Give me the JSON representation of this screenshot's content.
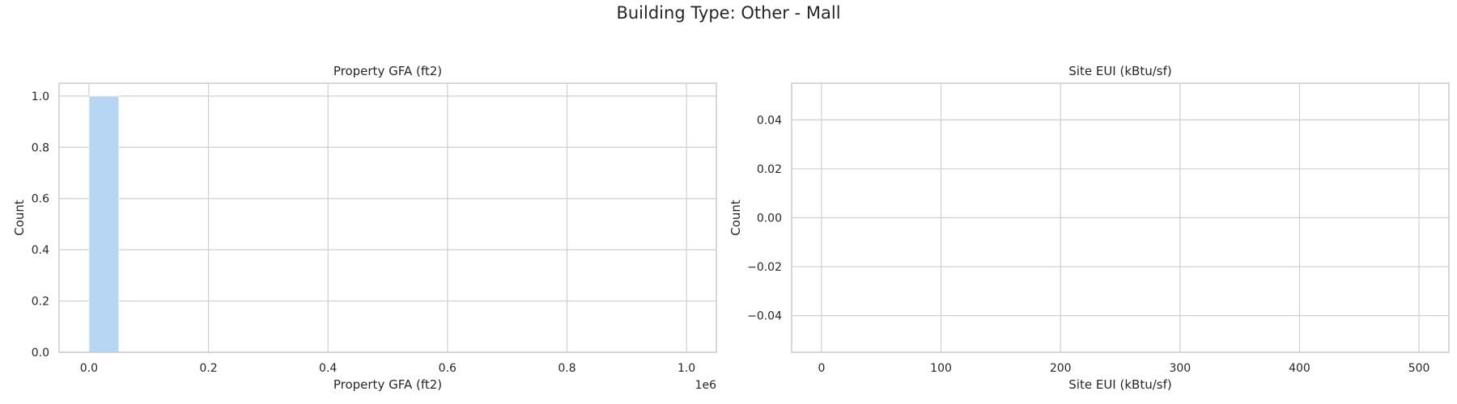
{
  "suptitle": "Building Type: Other - Mall",
  "colors": {
    "bar": "#b7d6f4",
    "grid": "#cfcfcf",
    "frame": "#c8c8c8",
    "text": "#262626"
  },
  "chart_data": [
    {
      "type": "bar",
      "title": "Property GFA (ft2)",
      "xlabel": "Property GFA (ft2)",
      "ylabel": "Count",
      "offset_text": "1e6",
      "xlim": [
        -50000,
        1050000
      ],
      "ylim": [
        0,
        1.05
      ],
      "x_ticks": [
        0,
        200000,
        400000,
        600000,
        800000,
        1000000
      ],
      "x_tick_labels": [
        "0.0",
        "0.2",
        "0.4",
        "0.6",
        "0.8",
        "1.0"
      ],
      "y_ticks": [
        0,
        0.2,
        0.4,
        0.6,
        0.8,
        1.0
      ],
      "y_tick_labels": [
        "0.0",
        "0.2",
        "0.4",
        "0.6",
        "0.8",
        "1.0"
      ],
      "bins": [
        {
          "x0": 0,
          "x1": 50000,
          "count": 1
        }
      ],
      "grid": true
    },
    {
      "type": "bar",
      "title": "Site EUI (kBtu/sf)",
      "xlabel": "Site EUI (kBtu/sf)",
      "ylabel": "Count",
      "xlim": [
        -25,
        525
      ],
      "ylim": [
        -0.055,
        0.055
      ],
      "x_ticks": [
        0,
        100,
        200,
        300,
        400,
        500
      ],
      "x_tick_labels": [
        "0",
        "100",
        "200",
        "300",
        "400",
        "500"
      ],
      "y_ticks": [
        -0.04,
        -0.02,
        0,
        0.02,
        0.04
      ],
      "y_tick_labels": [
        "−0.04",
        "−0.02",
        "0.00",
        "0.02",
        "0.04"
      ],
      "bins": [],
      "grid": true
    }
  ]
}
